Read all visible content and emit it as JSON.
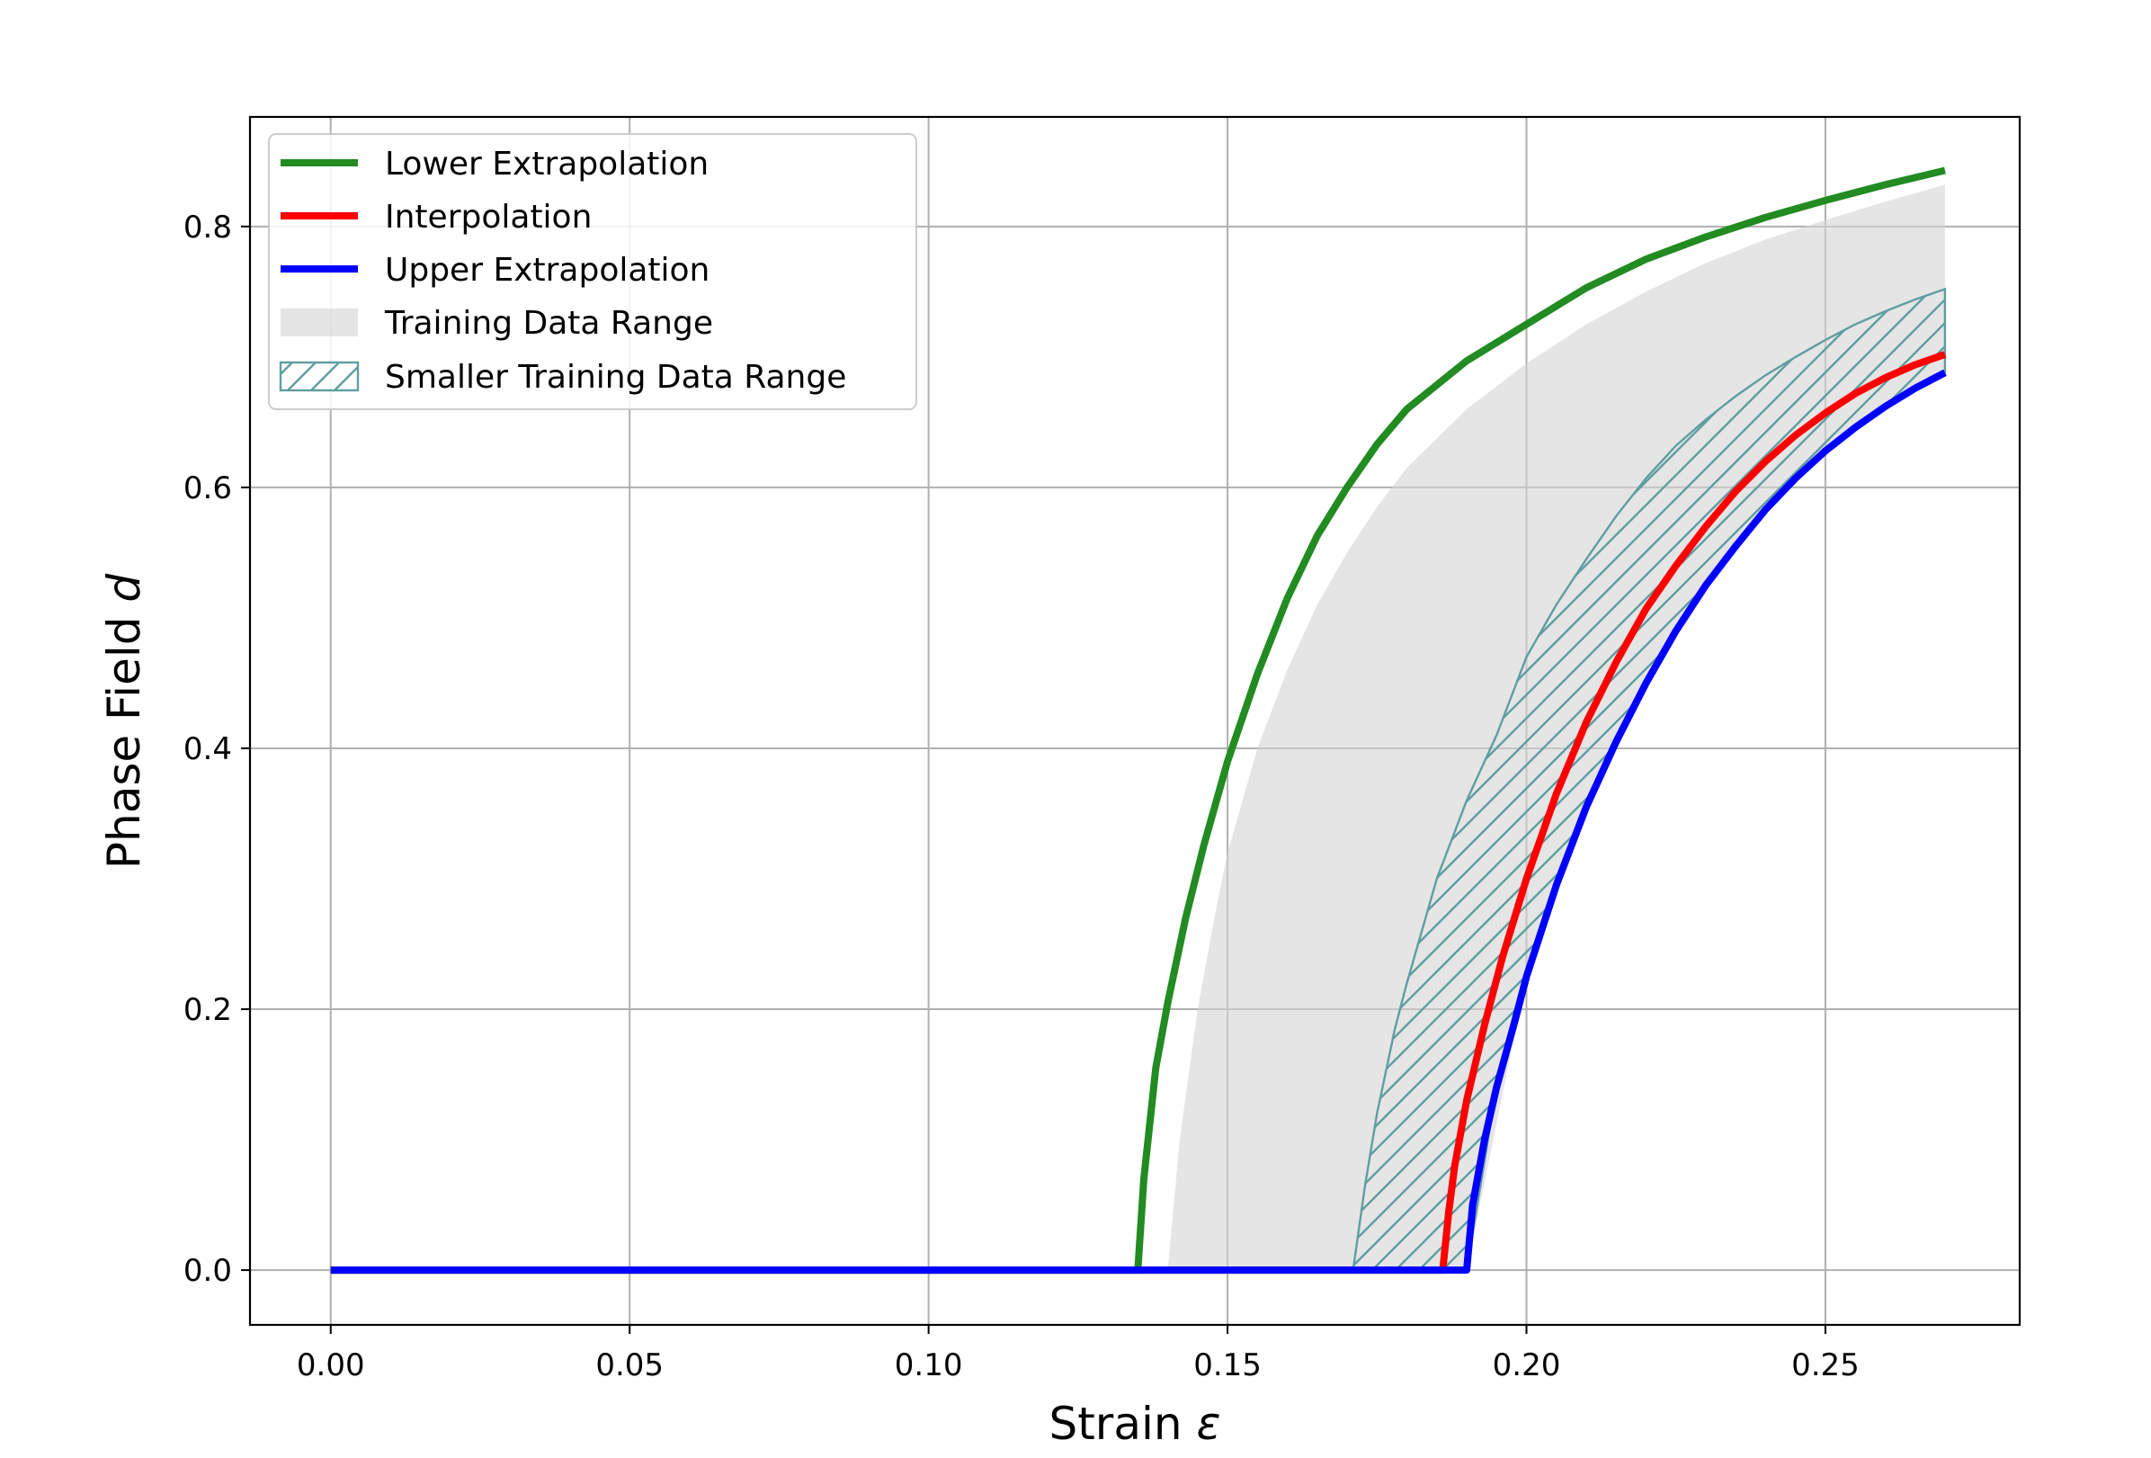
{
  "chart_data": {
    "type": "line",
    "xlabel": "Strain",
    "xlabel_symbol": "ε",
    "ylabel": "Phase Field",
    "ylabel_symbol": "d",
    "xlim": [
      -0.0135,
      0.2825
    ],
    "ylim": [
      -0.042,
      0.884
    ],
    "xticks": [
      0.0,
      0.05,
      0.1,
      0.15,
      0.2,
      0.25
    ],
    "xtick_labels": [
      "0.00",
      "0.05",
      "0.10",
      "0.15",
      "0.20",
      "0.25"
    ],
    "yticks": [
      0.0,
      0.2,
      0.4,
      0.6,
      0.8
    ],
    "ytick_labels": [
      "0.0",
      "0.2",
      "0.4",
      "0.6",
      "0.8"
    ],
    "grid": true,
    "legend_position": "top-left",
    "series": [
      {
        "name": "Lower Extrapolation",
        "color": "#228b22",
        "x": [
          0.0,
          0.135,
          0.136,
          0.138,
          0.14,
          0.143,
          0.146,
          0.15,
          0.155,
          0.16,
          0.165,
          0.17,
          0.175,
          0.18,
          0.19,
          0.2,
          0.21,
          0.22,
          0.23,
          0.24,
          0.25,
          0.26,
          0.27
        ],
        "y": [
          0.0,
          0.0,
          0.07,
          0.155,
          0.205,
          0.27,
          0.325,
          0.39,
          0.457,
          0.515,
          0.563,
          0.6,
          0.633,
          0.66,
          0.697,
          0.725,
          0.753,
          0.775,
          0.792,
          0.807,
          0.82,
          0.832,
          0.843
        ]
      },
      {
        "name": "Interpolation",
        "color": "#ff0000",
        "x": [
          0.0,
          0.186,
          0.187,
          0.188,
          0.19,
          0.193,
          0.196,
          0.2,
          0.205,
          0.21,
          0.215,
          0.22,
          0.225,
          0.23,
          0.235,
          0.24,
          0.245,
          0.25,
          0.255,
          0.26,
          0.265,
          0.27
        ],
        "y": [
          0.0,
          0.0,
          0.045,
          0.08,
          0.13,
          0.188,
          0.24,
          0.3,
          0.365,
          0.42,
          0.466,
          0.507,
          0.54,
          0.57,
          0.597,
          0.62,
          0.64,
          0.657,
          0.672,
          0.684,
          0.694,
          0.702
        ]
      },
      {
        "name": "Upper Extrapolation",
        "color": "#0000ff",
        "x": [
          0.0,
          0.19,
          0.191,
          0.193,
          0.195,
          0.198,
          0.2,
          0.205,
          0.21,
          0.215,
          0.22,
          0.225,
          0.23,
          0.235,
          0.24,
          0.245,
          0.25,
          0.255,
          0.26,
          0.265,
          0.27
        ],
        "y": [
          0.0,
          0.0,
          0.05,
          0.1,
          0.14,
          0.19,
          0.225,
          0.295,
          0.355,
          0.405,
          0.45,
          0.49,
          0.525,
          0.555,
          0.583,
          0.607,
          0.628,
          0.646,
          0.662,
          0.676,
          0.688
        ]
      }
    ],
    "bands": [
      {
        "name": "Training Data Range",
        "color": "#d3d3d3",
        "x": [
          0.14,
          0.142,
          0.145,
          0.148,
          0.15,
          0.155,
          0.16,
          0.165,
          0.17,
          0.175,
          0.18,
          0.19,
          0.2,
          0.21,
          0.22,
          0.23,
          0.24,
          0.25,
          0.26,
          0.27
        ],
        "upper": [
          0.0,
          0.1,
          0.2,
          0.275,
          0.32,
          0.4,
          0.46,
          0.51,
          0.55,
          0.585,
          0.615,
          0.66,
          0.695,
          0.725,
          0.75,
          0.772,
          0.79,
          0.805,
          0.819,
          0.832
        ],
        "lower": [
          0.0,
          0.0,
          0.0,
          0.0,
          0.0,
          0.0,
          0.0,
          0.0,
          0.0,
          0.0,
          0.0,
          0.0,
          0.225,
          0.355,
          0.45,
          0.525,
          0.583,
          0.628,
          0.662,
          0.688
        ]
      },
      {
        "name": "Smaller Training Data Range",
        "color": "#5f9ea0",
        "x": [
          0.171,
          0.173,
          0.175,
          0.178,
          0.18,
          0.185,
          0.19,
          0.195,
          0.2,
          0.205,
          0.21,
          0.215,
          0.22,
          0.225,
          0.23,
          0.235,
          0.24,
          0.245,
          0.25,
          0.255,
          0.26,
          0.265,
          0.27
        ],
        "upper": [
          0.0,
          0.065,
          0.12,
          0.185,
          0.22,
          0.3,
          0.36,
          0.41,
          0.47,
          0.51,
          0.545,
          0.578,
          0.607,
          0.632,
          0.652,
          0.67,
          0.686,
          0.7,
          0.713,
          0.725,
          0.735,
          0.744,
          0.752
        ],
        "lower": [
          0.0,
          0.0,
          0.0,
          0.0,
          0.0,
          0.0,
          0.0,
          0.14,
          0.225,
          0.295,
          0.355,
          0.405,
          0.45,
          0.49,
          0.525,
          0.555,
          0.583,
          0.607,
          0.628,
          0.646,
          0.662,
          0.676,
          0.688
        ]
      }
    ]
  }
}
